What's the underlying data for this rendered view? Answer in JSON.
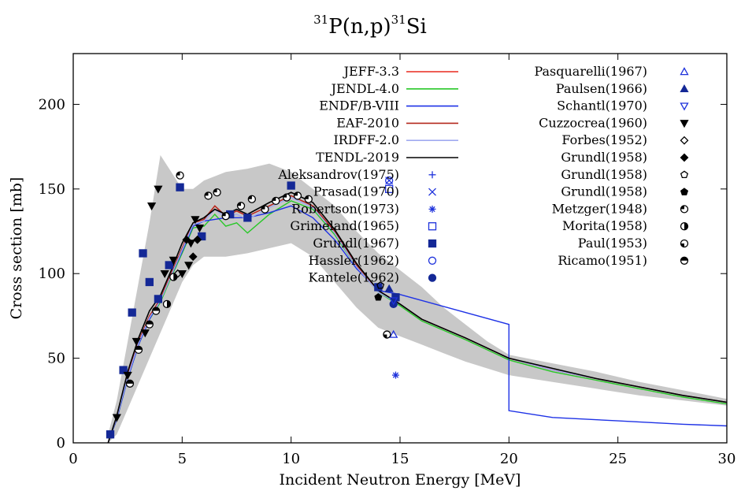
{
  "chart_data": {
    "type": "line",
    "title": {
      "pre": "31",
      "main": "P(n,p)",
      "post": "31",
      "end": "Si"
    },
    "xlabel": "Incident Neutron Energy [MeV]",
    "ylabel": "Cross section [mb]",
    "xlim": [
      0,
      30
    ],
    "ylim": [
      0,
      230
    ],
    "xticks": [
      "0",
      "5",
      "10",
      "15",
      "20",
      "25",
      "30"
    ],
    "yticks": [
      "0",
      "50",
      "100",
      "150",
      "200"
    ],
    "grid": false,
    "legend_placement": "top",
    "colors": {
      "jeff": "#e8281e",
      "jendl": "#28c828",
      "endf": "#1e32e6",
      "eaf": "#b4281e",
      "irdff": "#a0aaf0",
      "tendl": "#000000",
      "exfor_blue": "#1e32dc",
      "exfor_navy": "#142896",
      "band": "#c8c8c8"
    },
    "uncertainty_band": {
      "x": [
        1.6,
        2.0,
        2.5,
        3.0,
        3.5,
        4.0,
        4.5,
        5.0,
        5.5,
        6.0,
        7.0,
        8.0,
        9.0,
        10.0,
        11.0,
        12.0,
        13.0,
        14.0,
        15.0,
        16.0,
        17.0,
        18.0,
        19.0,
        20.0,
        22.0,
        24.0,
        26.0,
        28.0,
        30.0
      ],
      "low": [
        0,
        5,
        20,
        35,
        50,
        65,
        80,
        95,
        105,
        110,
        110,
        112,
        115,
        118,
        110,
        95,
        80,
        68,
        63,
        58,
        53,
        48,
        44,
        40,
        36,
        32,
        28,
        25,
        22
      ],
      "high": [
        5,
        25,
        60,
        95,
        130,
        170,
        160,
        150,
        150,
        155,
        160,
        162,
        165,
        160,
        150,
        140,
        125,
        112,
        102,
        92,
        80,
        70,
        60,
        52,
        47,
        42,
        36,
        31,
        26
      ]
    },
    "series": [
      {
        "name": "JEFF-3.3",
        "color_key": "jeff",
        "x": [
          1.6,
          2.0,
          2.5,
          3.0,
          3.5,
          4.0,
          4.5,
          5.0,
          5.5,
          6.0,
          6.5,
          7.0,
          7.5,
          8.0,
          9.0,
          10.0,
          11.0,
          12.0,
          13.0,
          14.0,
          15.0,
          16.0,
          18.0,
          20.0,
          22.0,
          24.0,
          26.0,
          28.0,
          30.0
        ],
        "y": [
          0,
          15,
          40,
          60,
          75,
          85,
          100,
          115,
          130,
          132,
          140,
          134,
          137,
          134,
          140,
          146,
          140,
          125,
          105,
          90,
          82,
          73,
          62,
          50,
          43,
          38,
          33,
          28,
          24
        ]
      },
      {
        "name": "JENDL-4.0",
        "color_key": "jendl",
        "x": [
          1.6,
          2.0,
          2.5,
          3.0,
          3.5,
          4.0,
          4.5,
          5.0,
          5.5,
          6.0,
          6.5,
          7.0,
          7.5,
          8.0,
          9.0,
          10.0,
          11.0,
          12.0,
          13.0,
          14.0,
          15.0,
          16.0,
          18.0,
          20.0,
          22.0,
          24.0,
          26.0,
          28.0,
          30.0
        ],
        "y": [
          0,
          14,
          38,
          58,
          73,
          83,
          98,
          112,
          127,
          128,
          135,
          128,
          130,
          124,
          135,
          143,
          138,
          123,
          104,
          89,
          81,
          72,
          61,
          49,
          42,
          37,
          32,
          27,
          23
        ]
      },
      {
        "name": "ENDF/B-VIII",
        "color_key": "endf",
        "x": [
          1.6,
          2.0,
          2.5,
          3.0,
          3.5,
          4.0,
          4.5,
          5.0,
          5.5,
          6.0,
          7.0,
          8.0,
          9.0,
          10.0,
          11.0,
          12.0,
          13.0,
          14.0,
          14.9,
          20.0,
          20.0,
          22.0,
          25.0,
          28.0,
          30.0
        ],
        "y": [
          0,
          14,
          38,
          58,
          73,
          84,
          99,
          113,
          128,
          131,
          133,
          133,
          136,
          140,
          133,
          120,
          103,
          90,
          88,
          70,
          19,
          15,
          13,
          11,
          10
        ]
      },
      {
        "name": "EAF-2010",
        "color_key": "eaf",
        "x": [
          1.6,
          2.0,
          2.5,
          3.0,
          3.5,
          4.0,
          4.5,
          5.0,
          5.5,
          6.0,
          6.5,
          7.0,
          7.5,
          8.0,
          9.0,
          10.0,
          11.0,
          12.0,
          13.0,
          14.0,
          15.0,
          16.0,
          18.0,
          20.0,
          22.0,
          24.0,
          26.0,
          28.0,
          30.0
        ],
        "y": [
          0,
          15,
          40,
          60,
          75,
          85,
          100,
          115,
          130,
          132,
          140,
          134,
          137,
          134,
          140,
          146,
          140,
          125,
          105,
          90,
          82,
          73,
          62,
          50,
          43,
          38,
          33,
          28,
          24
        ]
      },
      {
        "name": "IRDFF-2.0",
        "color_key": "irdff",
        "x": [
          1.6,
          2.0,
          2.5,
          3.0,
          3.5,
          4.0,
          4.5,
          5.0,
          5.5,
          6.0,
          6.5,
          7.0,
          7.5,
          8.0,
          9.0,
          10.0,
          11.0,
          12.0,
          13.0,
          14.0,
          15.0,
          16.0,
          18.0,
          20.0,
          22.0,
          24.0,
          26.0,
          28.0,
          30.0
        ],
        "y": [
          0,
          15,
          39,
          59,
          74,
          84,
          99,
          114,
          129,
          131,
          138,
          133,
          135,
          132,
          139,
          145,
          139,
          124,
          104,
          89,
          82,
          73,
          62,
          50,
          43,
          38,
          33,
          28,
          24
        ]
      },
      {
        "name": "TENDL-2019",
        "color_key": "tendl",
        "x": [
          1.6,
          2.0,
          2.5,
          3.0,
          3.5,
          4.0,
          4.5,
          5.0,
          5.5,
          6.0,
          6.5,
          7.0,
          7.5,
          8.0,
          9.0,
          10.0,
          11.0,
          12.0,
          13.0,
          14.0,
          15.0,
          16.0,
          18.0,
          20.0,
          22.0,
          24.0,
          26.0,
          28.0,
          30.0
        ],
        "y": [
          0,
          16,
          42,
          62,
          78,
          87,
          102,
          118,
          130,
          133,
          138,
          135,
          138,
          135,
          142,
          148,
          142,
          126,
          106,
          90,
          82,
          73,
          62,
          50,
          44,
          38,
          33,
          28,
          24
        ]
      }
    ],
    "experimental": [
      {
        "name": "Aleksandrov(1975)",
        "marker": "plus",
        "color_key": "exfor_blue",
        "x": [
          14.8
        ],
        "y": [
          84
        ]
      },
      {
        "name": "Prasad(1970)",
        "marker": "cross",
        "color_key": "exfor_blue",
        "x": [
          14.5
        ],
        "y": [
          155
        ]
      },
      {
        "name": "Robertson(1973)",
        "marker": "star",
        "color_key": "exfor_blue",
        "x": [
          14.8
        ],
        "y": [
          40
        ]
      },
      {
        "name": "Grimeland(1965)",
        "marker": "square-open",
        "color_key": "exfor_blue",
        "x": [
          14.5
        ],
        "y": [
          150
        ]
      },
      {
        "name": "Grundl(1967)",
        "marker": "square-filled",
        "color_key": "exfor_navy",
        "x": [
          1.7,
          2.3,
          2.7,
          3.2,
          3.5,
          3.9,
          4.4,
          4.9,
          5.9,
          7.2,
          8.0,
          10.0,
          14.0,
          14.8
        ],
        "y": [
          5,
          43,
          77,
          112,
          95,
          85,
          105,
          151,
          122,
          135,
          133,
          152,
          92,
          86
        ]
      },
      {
        "name": "Hassler(1962)",
        "marker": "circle-open",
        "color_key": "exfor_blue",
        "x": [
          14.5
        ],
        "y": [
          155
        ]
      },
      {
        "name": "Kantele(1962)",
        "marker": "circle-filled",
        "color_key": "exfor_navy",
        "x": [
          14.7
        ],
        "y": [
          82
        ]
      },
      {
        "name": "Pasquarelli(1967)",
        "marker": "triangle-open",
        "color_key": "exfor_blue",
        "x": [
          14.7
        ],
        "y": [
          64
        ]
      },
      {
        "name": "Paulsen(1966)",
        "marker": "triangle-filled",
        "color_key": "exfor_navy",
        "x": [
          14.5
        ],
        "y": [
          91
        ]
      },
      {
        "name": "Schantl(1970)",
        "marker": "tri-down-open",
        "color_key": "exfor_blue",
        "x": [
          14.7
        ],
        "y": [
          84
        ]
      },
      {
        "name": "Cuzzocrea(1960)",
        "marker": "tri-down-filled",
        "color_key": "tendl",
        "x": [
          2.0,
          2.5,
          2.9,
          3.3,
          3.6,
          3.9,
          4.2,
          4.6,
          5.0,
          5.3,
          5.4,
          5.6,
          5.8
        ],
        "y": [
          15,
          40,
          60,
          65,
          140,
          150,
          100,
          108,
          100,
          105,
          118,
          132,
          127
        ]
      },
      {
        "name": "Forbes(1952)",
        "marker": "diamond-open",
        "color_key": "tendl",
        "x": [
          4.8
        ],
        "y": [
          100
        ]
      },
      {
        "name": "Grundl(1958)",
        "marker": "diamond-filled",
        "color_key": "tendl",
        "x": [
          5.2,
          5.5,
          5.7
        ],
        "y": [
          120,
          110,
          120
        ]
      },
      {
        "name": "Grundl(1958)",
        "marker": "pentagon-open",
        "color_key": "tendl",
        "x": [
          14.1
        ],
        "y": [
          93
        ]
      },
      {
        "name": "Grundl(1958)",
        "marker": "pentagon-filled",
        "color_key": "tendl",
        "x": [
          14.0
        ],
        "y": [
          86
        ]
      },
      {
        "name": "Metzger(1948)",
        "marker": "circle-dot",
        "color_key": "tendl",
        "x": [
          4.9,
          6.2,
          6.6,
          7.0,
          7.7,
          8.2,
          8.8,
          9.3,
          9.8,
          10.3,
          10.8
        ],
        "y": [
          158,
          146,
          148,
          134,
          140,
          144,
          138,
          143,
          145,
          146,
          144
        ]
      },
      {
        "name": "Morita(1958)",
        "marker": "circle-half",
        "color_key": "tendl",
        "x": [
          4.3,
          4.6
        ],
        "y": [
          82,
          98
        ]
      },
      {
        "name": "Paul(1953)",
        "marker": "circle-third",
        "color_key": "tendl",
        "x": [
          14.4
        ],
        "y": [
          64
        ]
      },
      {
        "name": "Ricamo(1951)",
        "marker": "circle-halfh",
        "color_key": "tendl",
        "x": [
          2.6,
          3.0,
          3.5,
          3.8
        ],
        "y": [
          35,
          55,
          70,
          78
        ]
      }
    ],
    "legend_left": [
      "JEFF-3.3",
      "JENDL-4.0",
      "ENDF/B-VIII",
      "EAF-2010",
      "IRDFF-2.0",
      "TENDL-2019",
      "Aleksandrov(1975)",
      "Prasad(1970)",
      "Robertson(1973)",
      "Grimeland(1965)",
      "Grundl(1967)",
      "Hassler(1962)",
      "Kantele(1962)"
    ],
    "legend_right": [
      "Pasquarelli(1967)",
      "Paulsen(1966)",
      "Schantl(1970)",
      "Cuzzocrea(1960)",
      "Forbes(1952)",
      "Grundl(1958)",
      "Grundl(1958)",
      "Grundl(1958)",
      "Metzger(1948)",
      "Morita(1958)",
      "Paul(1953)",
      "Ricamo(1951)"
    ]
  }
}
